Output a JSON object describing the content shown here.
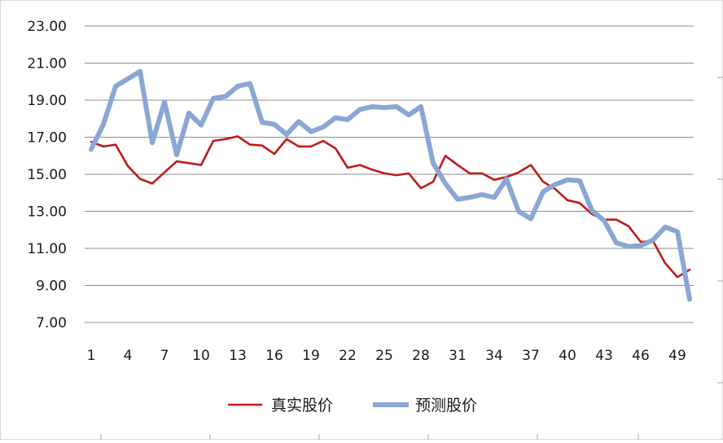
{
  "chart_data": {
    "type": "line",
    "title": "",
    "xlabel": "",
    "ylabel": "",
    "ylim": [
      7,
      23
    ],
    "y_ticks": [
      "23.00",
      "21.00",
      "19.00",
      "17.00",
      "15.00",
      "13.00",
      "11.00",
      "9.00",
      "7.00"
    ],
    "x_ticks": [
      "1",
      "4",
      "7",
      "10",
      "13",
      "16",
      "19",
      "22",
      "25",
      "28",
      "31",
      "34",
      "37",
      "40",
      "43",
      "46",
      "49"
    ],
    "grid": "horizontal",
    "legend_position": "bottom",
    "x": [
      1,
      2,
      3,
      4,
      5,
      6,
      7,
      8,
      9,
      10,
      11,
      12,
      13,
      14,
      15,
      16,
      17,
      18,
      19,
      20,
      21,
      22,
      23,
      24,
      25,
      26,
      27,
      28,
      29,
      30,
      31,
      32,
      33,
      34,
      35,
      36,
      37,
      38,
      39,
      40,
      41,
      42,
      43,
      44,
      45,
      46,
      47,
      48,
      49,
      50
    ],
    "series": [
      {
        "name": "真实股价",
        "color": "#c0191c",
        "values": [
          16.75,
          16.5,
          16.6,
          15.45,
          14.75,
          14.5,
          15.1,
          15.7,
          15.6,
          15.5,
          16.8,
          16.9,
          17.05,
          16.6,
          16.55,
          16.1,
          16.9,
          16.5,
          16.5,
          16.8,
          16.4,
          15.35,
          15.5,
          15.25,
          15.05,
          14.95,
          15.05,
          14.25,
          14.6,
          16.0,
          15.5,
          15.05,
          15.05,
          14.7,
          14.85,
          15.1,
          15.5,
          14.6,
          14.2,
          13.6,
          13.45,
          12.85,
          12.55,
          12.55,
          12.2,
          11.35,
          11.4,
          10.2,
          9.45,
          9.85
        ]
      },
      {
        "name": "预测股价",
        "color": "#8aa6d4",
        "values": [
          16.35,
          17.7,
          19.75,
          20.15,
          20.55,
          16.7,
          18.9,
          16.05,
          18.3,
          17.65,
          19.1,
          19.2,
          19.75,
          19.9,
          17.8,
          17.7,
          17.15,
          17.85,
          17.3,
          17.55,
          18.05,
          17.95,
          18.5,
          18.65,
          18.6,
          18.65,
          18.2,
          18.65,
          15.6,
          14.5,
          13.65,
          13.75,
          13.9,
          13.75,
          14.75,
          13.0,
          12.6,
          14.05,
          14.45,
          14.7,
          14.65,
          13.05,
          12.5,
          11.3,
          11.1,
          11.15,
          11.45,
          12.15,
          11.9,
          8.25
        ]
      }
    ]
  }
}
